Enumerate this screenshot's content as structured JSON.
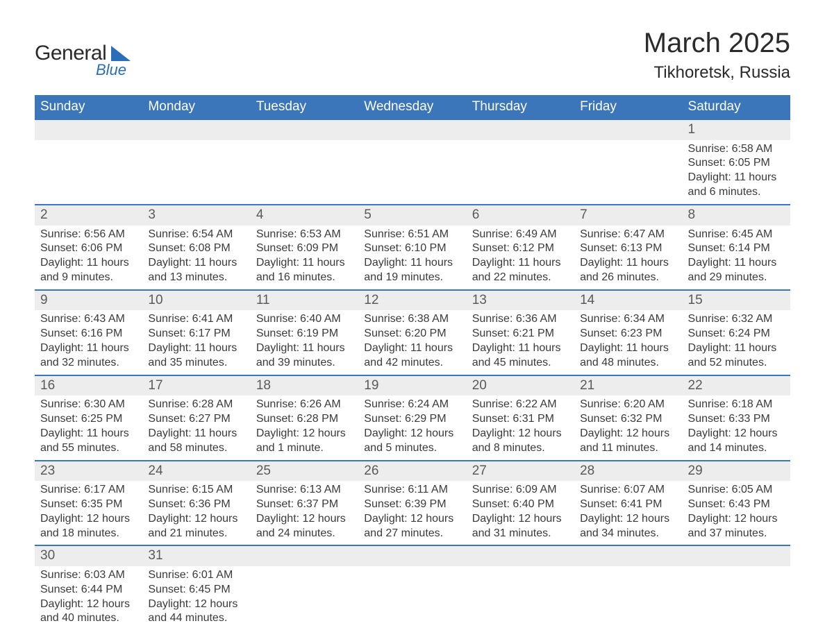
{
  "logo": {
    "text1": "General",
    "text2": "Blue",
    "color": "#2a6db8"
  },
  "title": "March 2025",
  "location": "Tikhoretsk, Russia",
  "header_bg": "#3a76b9",
  "daynum_bg": "#ededed",
  "border_color": "#3a76b9",
  "days_of_week": [
    "Sunday",
    "Monday",
    "Tuesday",
    "Wednesday",
    "Thursday",
    "Friday",
    "Saturday"
  ],
  "labels": {
    "sunrise": "Sunrise: ",
    "sunset": "Sunset: ",
    "daylight": "Daylight: "
  },
  "weeks": [
    [
      null,
      null,
      null,
      null,
      null,
      null,
      {
        "n": "1",
        "sr": "6:58 AM",
        "ss": "6:05 PM",
        "dl": "11 hours and 6 minutes."
      }
    ],
    [
      {
        "n": "2",
        "sr": "6:56 AM",
        "ss": "6:06 PM",
        "dl": "11 hours and 9 minutes."
      },
      {
        "n": "3",
        "sr": "6:54 AM",
        "ss": "6:08 PM",
        "dl": "11 hours and 13 minutes."
      },
      {
        "n": "4",
        "sr": "6:53 AM",
        "ss": "6:09 PM",
        "dl": "11 hours and 16 minutes."
      },
      {
        "n": "5",
        "sr": "6:51 AM",
        "ss": "6:10 PM",
        "dl": "11 hours and 19 minutes."
      },
      {
        "n": "6",
        "sr": "6:49 AM",
        "ss": "6:12 PM",
        "dl": "11 hours and 22 minutes."
      },
      {
        "n": "7",
        "sr": "6:47 AM",
        "ss": "6:13 PM",
        "dl": "11 hours and 26 minutes."
      },
      {
        "n": "8",
        "sr": "6:45 AM",
        "ss": "6:14 PM",
        "dl": "11 hours and 29 minutes."
      }
    ],
    [
      {
        "n": "9",
        "sr": "6:43 AM",
        "ss": "6:16 PM",
        "dl": "11 hours and 32 minutes."
      },
      {
        "n": "10",
        "sr": "6:41 AM",
        "ss": "6:17 PM",
        "dl": "11 hours and 35 minutes."
      },
      {
        "n": "11",
        "sr": "6:40 AM",
        "ss": "6:19 PM",
        "dl": "11 hours and 39 minutes."
      },
      {
        "n": "12",
        "sr": "6:38 AM",
        "ss": "6:20 PM",
        "dl": "11 hours and 42 minutes."
      },
      {
        "n": "13",
        "sr": "6:36 AM",
        "ss": "6:21 PM",
        "dl": "11 hours and 45 minutes."
      },
      {
        "n": "14",
        "sr": "6:34 AM",
        "ss": "6:23 PM",
        "dl": "11 hours and 48 minutes."
      },
      {
        "n": "15",
        "sr": "6:32 AM",
        "ss": "6:24 PM",
        "dl": "11 hours and 52 minutes."
      }
    ],
    [
      {
        "n": "16",
        "sr": "6:30 AM",
        "ss": "6:25 PM",
        "dl": "11 hours and 55 minutes."
      },
      {
        "n": "17",
        "sr": "6:28 AM",
        "ss": "6:27 PM",
        "dl": "11 hours and 58 minutes."
      },
      {
        "n": "18",
        "sr": "6:26 AM",
        "ss": "6:28 PM",
        "dl": "12 hours and 1 minute."
      },
      {
        "n": "19",
        "sr": "6:24 AM",
        "ss": "6:29 PM",
        "dl": "12 hours and 5 minutes."
      },
      {
        "n": "20",
        "sr": "6:22 AM",
        "ss": "6:31 PM",
        "dl": "12 hours and 8 minutes."
      },
      {
        "n": "21",
        "sr": "6:20 AM",
        "ss": "6:32 PM",
        "dl": "12 hours and 11 minutes."
      },
      {
        "n": "22",
        "sr": "6:18 AM",
        "ss": "6:33 PM",
        "dl": "12 hours and 14 minutes."
      }
    ],
    [
      {
        "n": "23",
        "sr": "6:17 AM",
        "ss": "6:35 PM",
        "dl": "12 hours and 18 minutes."
      },
      {
        "n": "24",
        "sr": "6:15 AM",
        "ss": "6:36 PM",
        "dl": "12 hours and 21 minutes."
      },
      {
        "n": "25",
        "sr": "6:13 AM",
        "ss": "6:37 PM",
        "dl": "12 hours and 24 minutes."
      },
      {
        "n": "26",
        "sr": "6:11 AM",
        "ss": "6:39 PM",
        "dl": "12 hours and 27 minutes."
      },
      {
        "n": "27",
        "sr": "6:09 AM",
        "ss": "6:40 PM",
        "dl": "12 hours and 31 minutes."
      },
      {
        "n": "28",
        "sr": "6:07 AM",
        "ss": "6:41 PM",
        "dl": "12 hours and 34 minutes."
      },
      {
        "n": "29",
        "sr": "6:05 AM",
        "ss": "6:43 PM",
        "dl": "12 hours and 37 minutes."
      }
    ],
    [
      {
        "n": "30",
        "sr": "6:03 AM",
        "ss": "6:44 PM",
        "dl": "12 hours and 40 minutes."
      },
      {
        "n": "31",
        "sr": "6:01 AM",
        "ss": "6:45 PM",
        "dl": "12 hours and 44 minutes."
      },
      null,
      null,
      null,
      null,
      null
    ]
  ]
}
